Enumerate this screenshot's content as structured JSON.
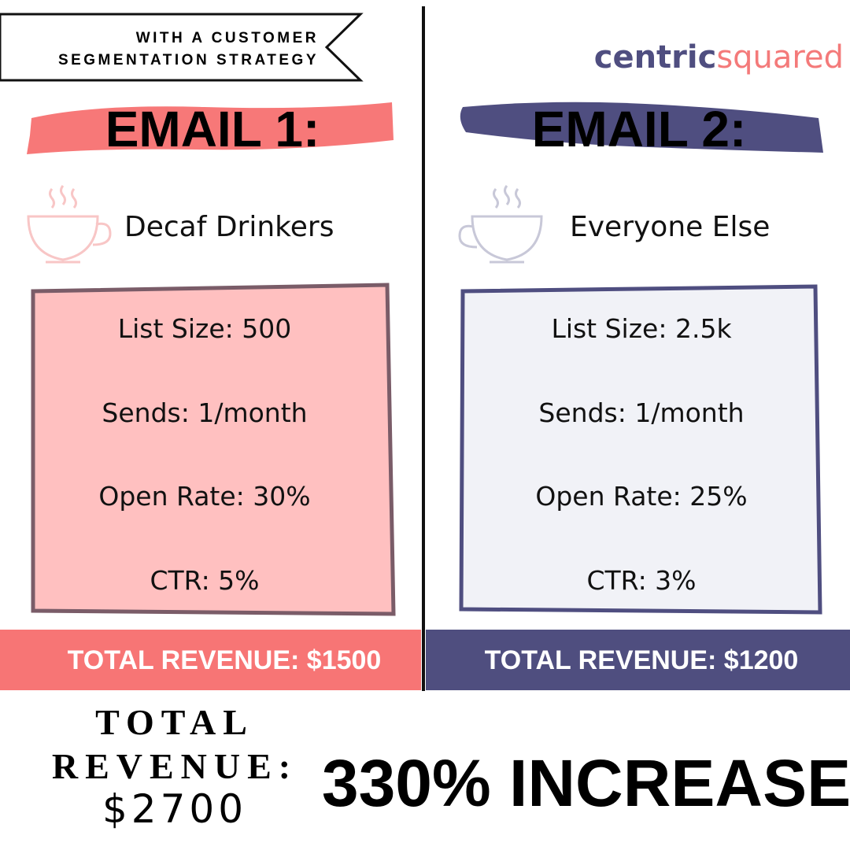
{
  "banner": {
    "line1": "WITH A CUSTOMER",
    "line2": "SEGMENTATION STRATEGY"
  },
  "brand": {
    "part1": "centric",
    "part2": "squared"
  },
  "columns": [
    {
      "heading": "EMAIL 1:",
      "segment": "Decaf Drinkers",
      "stats": [
        "List Size: 500",
        "Sends: 1/month",
        "Open Rate: 30%",
        "CTR: 5%"
      ],
      "revenue": "TOTAL REVENUE: $1500"
    },
    {
      "heading": "EMAIL 2:",
      "segment": "Everyone Else",
      "stats": [
        "List Size: 2.5k",
        "Sends: 1/month",
        "Open Rate: 25%",
        "CTR: 3%"
      ],
      "revenue": "TOTAL REVENUE: $1200"
    }
  ],
  "footer": {
    "total_line1": "TOTAL",
    "total_line2": "REVENUE:",
    "total_value": "$2700",
    "increase": "330% INCREASE"
  }
}
